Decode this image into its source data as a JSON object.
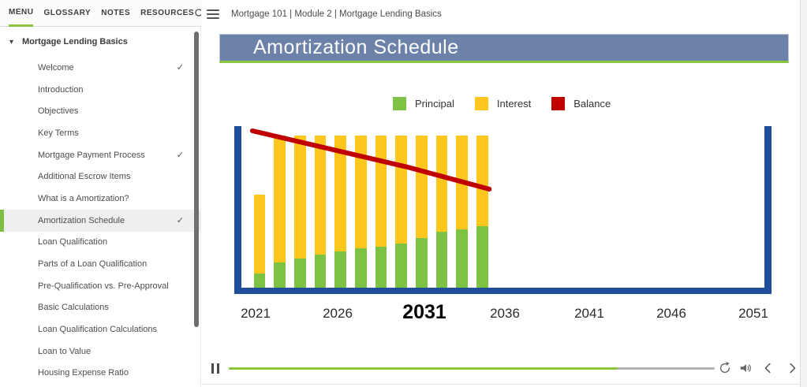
{
  "sidebar": {
    "tabs": [
      {
        "label": "MENU",
        "active": true
      },
      {
        "label": "GLOSSARY"
      },
      {
        "label": "NOTES"
      },
      {
        "label": "RESOURCES"
      }
    ],
    "search_icon": "search-icon",
    "section": {
      "label": "Mortgage Lending Basics",
      "expanded": true
    },
    "items": [
      {
        "label": "Welcome",
        "check": "✓"
      },
      {
        "label": "Introduction"
      },
      {
        "label": "Objectives"
      },
      {
        "label": "Key Terms"
      },
      {
        "label": "Mortgage Payment Process",
        "check": "✓"
      },
      {
        "label": "Additional Escrow Items"
      },
      {
        "label": "What is a Amortization?"
      },
      {
        "label": "Amortization Schedule",
        "check": "✓",
        "selected": true
      },
      {
        "label": "Loan Qualification"
      },
      {
        "label": "Parts of a Loan Qualification"
      },
      {
        "label": "Pre-Qualification vs. Pre-Approval"
      },
      {
        "label": "Basic Calculations"
      },
      {
        "label": "Loan Qualification Calculations"
      },
      {
        "label": "Loan to Value"
      },
      {
        "label": "Housing Expense Ratio"
      }
    ]
  },
  "topbar": {
    "menu_icon": "hamburger-icon",
    "breadcrumb": "Mortgage 101 | Module 2 | Mortgage Lending Basics"
  },
  "slide": {
    "title": "Amortization Schedule"
  },
  "chart_data": {
    "type": "bar",
    "title": "Amortization Schedule",
    "legend_position": "top",
    "x_tick_labels": [
      "2021",
      "2026",
      "2031",
      "2036",
      "2041",
      "2046",
      "2051"
    ],
    "highlighted_tick": "2031",
    "bars_shown": 12,
    "units": "percent of plot height (no numeric y-axis shown; slide animation in progress)",
    "series": [
      {
        "name": "Principal",
        "color": "#7DC242",
        "values": [
          8.8,
          15.6,
          18.0,
          20.5,
          22.4,
          24.4,
          25.4,
          27.3,
          30.7,
          34.6,
          36.1,
          38.0
        ]
      },
      {
        "name": "Interest",
        "color": "#FFC61E",
        "values": [
          48.8,
          78.5,
          76.1,
          73.6,
          71.7,
          69.7,
          68.7,
          66.8,
          63.4,
          59.5,
          58.0,
          56.1
        ]
      },
      {
        "name": "Balance",
        "color": "#C00000",
        "type": "line",
        "points_pct": [
          [
            2.1,
            2.9
          ],
          [
            31.8,
            25.4
          ],
          [
            47.4,
            39.0
          ]
        ]
      }
    ],
    "axis_frame_color": "#1F4E9C",
    "grid": false
  },
  "player": {
    "pause_icon": "pause-icon",
    "progress_pct": 80,
    "icons": [
      "replay-icon",
      "volume-icon",
      "previous-icon",
      "next-icon"
    ]
  },
  "colors": {
    "accent_green": "#8CC63F",
    "banner_blue": "#6C82A9",
    "axis_blue": "#1F4E9C",
    "progress_track_gray": "#B3B3B3",
    "selected_item_bg": "#EFEFEF"
  }
}
